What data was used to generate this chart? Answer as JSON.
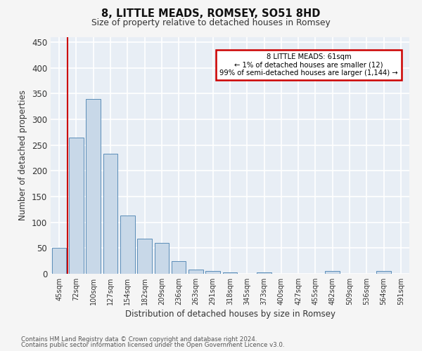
{
  "title": "8, LITTLE MEADS, ROMSEY, SO51 8HD",
  "subtitle": "Size of property relative to detached houses in Romsey",
  "xlabel": "Distribution of detached houses by size in Romsey",
  "ylabel": "Number of detached properties",
  "footnote1": "Contains HM Land Registry data © Crown copyright and database right 2024.",
  "footnote2": "Contains public sector information licensed under the Open Government Licence v3.0.",
  "categories": [
    "45sqm",
    "72sqm",
    "100sqm",
    "127sqm",
    "154sqm",
    "182sqm",
    "209sqm",
    "236sqm",
    "263sqm",
    "291sqm",
    "318sqm",
    "345sqm",
    "373sqm",
    "400sqm",
    "427sqm",
    "455sqm",
    "482sqm",
    "509sqm",
    "536sqm",
    "564sqm",
    "591sqm"
  ],
  "values": [
    50,
    265,
    340,
    233,
    113,
    68,
    60,
    25,
    8,
    5,
    3,
    0,
    3,
    0,
    0,
    0,
    5,
    0,
    0,
    5,
    0
  ],
  "bar_color": "#c8d8e8",
  "bar_edge_color": "#5b8db8",
  "bg_color": "#e8eef5",
  "grid_color": "#ffffff",
  "annotation_text": "8 LITTLE MEADS: 61sqm\n← 1% of detached houses are smaller (12)\n99% of semi-detached houses are larger (1,144) →",
  "annotation_box_color": "#cc0000",
  "vline_x": 0.5,
  "vline_color": "#cc0000",
  "ylim": [
    0,
    460
  ],
  "yticks": [
    0,
    50,
    100,
    150,
    200,
    250,
    300,
    350,
    400,
    450
  ],
  "fig_bg": "#f5f5f5"
}
